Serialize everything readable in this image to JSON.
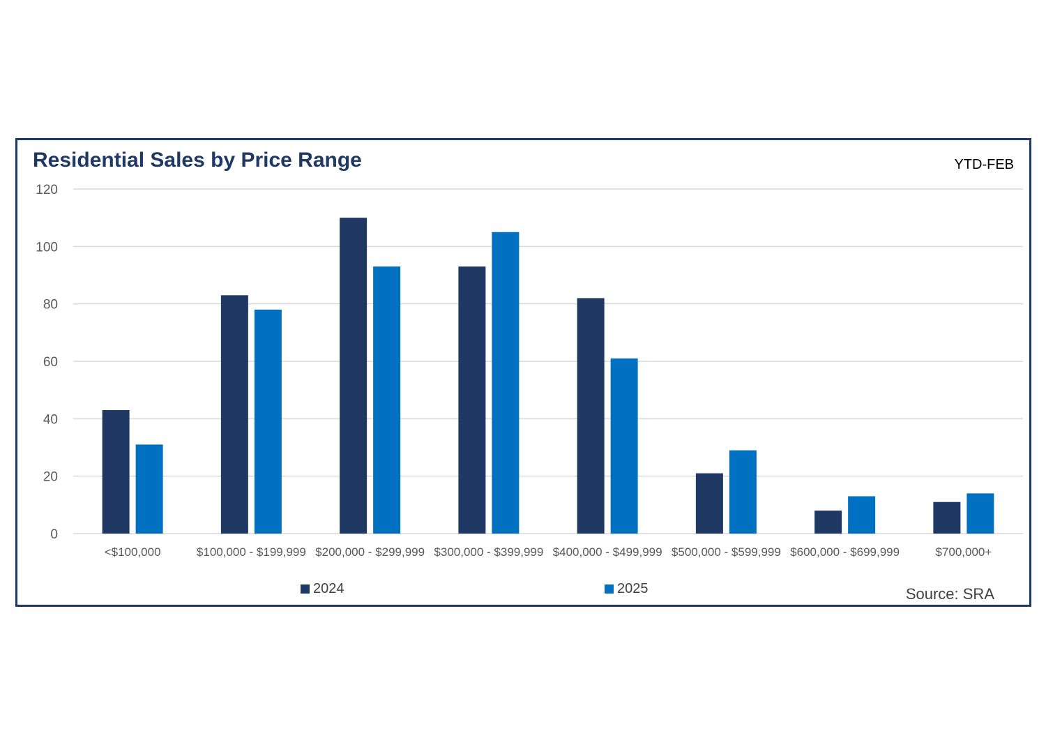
{
  "colors": {
    "frame": "#1f3864",
    "title": "#1f3864",
    "grid": "#d9d9d9",
    "axis_text": "#595959",
    "series_2024": "#203864",
    "series_2025": "#0070c0"
  },
  "chart_data": {
    "type": "bar",
    "title": "Residential Sales by Price Range",
    "subtitle": "YTD-FEB",
    "source": "Source: SRA",
    "xlabel": "",
    "ylabel": "",
    "ylim": [
      0,
      120
    ],
    "yticks": [
      "0",
      "20",
      "40",
      "60",
      "80",
      "100",
      "120"
    ],
    "grid": true,
    "legend_position": "bottom",
    "categories": [
      "<$100,000",
      "$100,000 - $199,999",
      "$200,000 - $299,999",
      "$300,000 - $399,999",
      "$400,000 - $499,999",
      "$500,000 - $599,999",
      "$600,000 - $699,999",
      "$700,000+"
    ],
    "series": [
      {
        "name": "2024",
        "color": "#203864",
        "values": [
          43,
          83,
          110,
          93,
          82,
          21,
          8,
          11
        ]
      },
      {
        "name": "2025",
        "color": "#0070c0",
        "values": [
          31,
          78,
          93,
          105,
          61,
          29,
          13,
          14
        ]
      }
    ]
  }
}
